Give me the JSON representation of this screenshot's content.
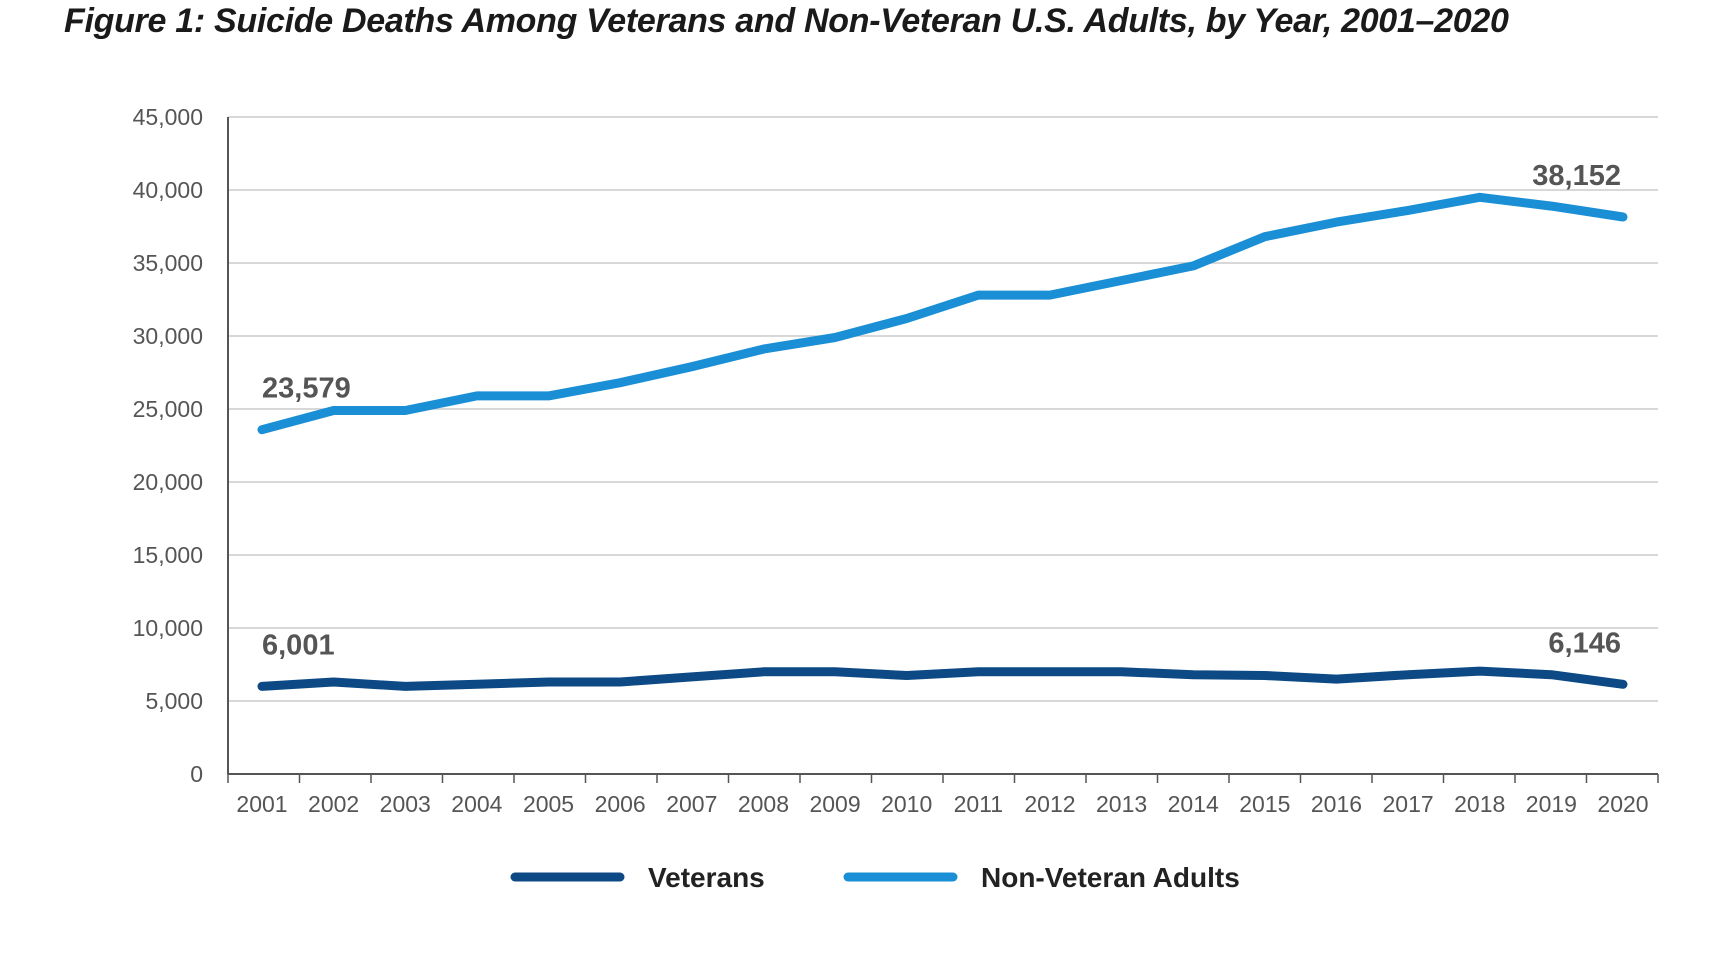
{
  "chart_data": {
    "type": "line",
    "title": "Figure 1: Suicide Deaths Among Veterans and Non-Veteran U.S. Adults, by Year, 2001–2020",
    "x": [
      "2001",
      "2002",
      "2003",
      "2004",
      "2005",
      "2006",
      "2007",
      "2008",
      "2009",
      "2010",
      "2011",
      "2012",
      "2013",
      "2014",
      "2015",
      "2016",
      "2017",
      "2018",
      "2019",
      "2020"
    ],
    "yticks": [
      "0",
      "5,000",
      "10,000",
      "15,000",
      "20,000",
      "25,000",
      "30,000",
      "35,000",
      "40,000",
      "45,000"
    ],
    "ylim": [
      0,
      45000
    ],
    "grid": true,
    "legend_position": "bottom-center",
    "series": [
      {
        "name": "Veterans",
        "color": "#0d4a85",
        "values": [
          6001,
          6300,
          6000,
          6150,
          6300,
          6300,
          6650,
          7000,
          7000,
          6750,
          7000,
          7000,
          7000,
          6800,
          6750,
          6500,
          6800,
          7050,
          6800,
          6146
        ]
      },
      {
        "name": "Non-Veteran Adults",
        "color": "#1b8fd6",
        "values": [
          23579,
          24900,
          24900,
          25900,
          25900,
          26800,
          27900,
          29100,
          29900,
          31200,
          32800,
          32800,
          33800,
          34800,
          36800,
          37800,
          38600,
          39500,
          38900,
          38152
        ]
      }
    ],
    "annotations": [
      {
        "series": "Non-Veteran Adults",
        "index": 0,
        "text": "23,579"
      },
      {
        "series": "Non-Veteran Adults",
        "index": 19,
        "text": "38,152"
      },
      {
        "series": "Veterans",
        "index": 0,
        "text": "6,001"
      },
      {
        "series": "Veterans",
        "index": 19,
        "text": "6,146"
      }
    ]
  }
}
